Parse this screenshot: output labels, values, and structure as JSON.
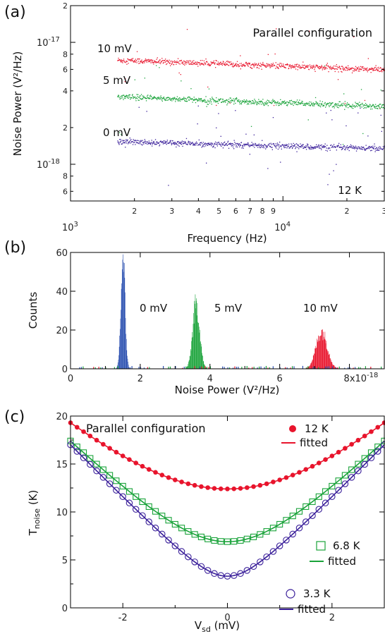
{
  "panels": [
    {
      "label": "(a)",
      "chart_data": {
        "type": "scatter",
        "title": "Parallel configuration",
        "xlabel": "Frequency (Hz)",
        "ylabel": "Noise Power (V²/Hz)",
        "xscale": "log",
        "yscale": "log",
        "xlim": [
          1000,
          30000
        ],
        "ylim": [
          5e-19,
          2e-17
        ],
        "x_major_ticks": [
          {
            "value": 1000,
            "base": "10",
            "exp": "3"
          },
          {
            "value": 10000,
            "base": "10",
            "exp": "4"
          }
        ],
        "x_minor_ticks": [
          {
            "value": 2000,
            "label": "2"
          },
          {
            "value": 3000,
            "label": "3"
          },
          {
            "value": 4000,
            "label": "4"
          },
          {
            "value": 5000,
            "label": "5"
          },
          {
            "value": 6000,
            "label": "6"
          },
          {
            "value": 7000,
            "label": "7"
          },
          {
            "value": 8000,
            "label": "8"
          },
          {
            "value": 9000,
            "label": "9"
          },
          {
            "value": 20000,
            "label": "2"
          },
          {
            "value": 30000,
            "label": "3"
          }
        ],
        "y_major_ticks": [
          {
            "value": 1e-18,
            "base": "10",
            "exp": "-18"
          },
          {
            "value": 1e-17,
            "base": "10",
            "exp": "-17"
          }
        ],
        "y_minor_ticks": [
          {
            "value": 6e-19,
            "label": "6"
          },
          {
            "value": 8e-19,
            "label": "8"
          },
          {
            "value": 2e-18,
            "label": "2"
          },
          {
            "value": 4e-18,
            "label": "4"
          },
          {
            "value": 6e-18,
            "label": "6"
          },
          {
            "value": 8e-18,
            "label": "8"
          },
          {
            "value": 2e-17,
            "label": "2"
          }
        ],
        "series": [
          {
            "name": "10 mV",
            "color": "#e8142c",
            "y_start": 7.2e-18,
            "y_end": 6e-18
          },
          {
            "name": "5 mV",
            "color": "#1aa33a",
            "y_start": 3.6e-18,
            "y_end": 3e-18
          },
          {
            "name": "0 mV",
            "color": "#3a1f9a",
            "y_start": 1.55e-18,
            "y_end": 1.35e-18
          }
        ],
        "annotations": [
          {
            "text": "12 K"
          }
        ]
      }
    },
    {
      "label": "(b)",
      "chart_data": {
        "type": "bar",
        "xlabel": "Noise Power (V²/Hz)",
        "ylabel": "Counts",
        "xlim": [
          0,
          9
        ],
        "ylim": [
          0,
          60
        ],
        "x_ticks": [
          "0",
          "2",
          "4",
          "6",
          "8x10"
        ],
        "x_tick_exponent": "-18",
        "y_ticks": [
          "0",
          "20",
          "40",
          "60"
        ],
        "series": [
          {
            "name": "0 mV",
            "color": "#2a4fb0",
            "peak_x": 1.5,
            "peak_count": 59,
            "width": 0.06
          },
          {
            "name": "5 mV",
            "color": "#1aa33a",
            "peak_x": 3.6,
            "peak_count": 35,
            "width": 0.1
          },
          {
            "name": "10 mV",
            "color": "#e8142c",
            "peak_x": 7.2,
            "peak_count": 20,
            "width": 0.16
          }
        ]
      }
    },
    {
      "label": "(c)",
      "chart_data": {
        "type": "scatter",
        "title": "Parallel configuration",
        "xlabel_main": "V",
        "xlabel_sub": "sd",
        "xlabel_unit": " (mV)",
        "ylabel_main": "T",
        "ylabel_sub": "noise",
        "ylabel_unit": " (K)",
        "xlim": [
          -3,
          3
        ],
        "ylim": [
          0,
          20
        ],
        "x_ticks": [
          "-2",
          "0",
          "2"
        ],
        "y_ticks": [
          "0",
          "5",
          "10",
          "15",
          "20"
        ],
        "series": [
          {
            "name": "12 K",
            "fit_name": "fitted",
            "color": "#e8142c",
            "marker": "filled-circle",
            "min": 12.4,
            "edge": 19.3
          },
          {
            "name": "6.8 K",
            "fit_name": "fitted",
            "color": "#1aa33a",
            "marker": "open-square",
            "min": 6.9,
            "edge": 17.4
          },
          {
            "name": "3.3 K",
            "fit_name": "fitted",
            "color": "#3a1f9a",
            "marker": "open-circle",
            "min": 3.3,
            "edge": 17.0
          }
        ]
      }
    }
  ]
}
